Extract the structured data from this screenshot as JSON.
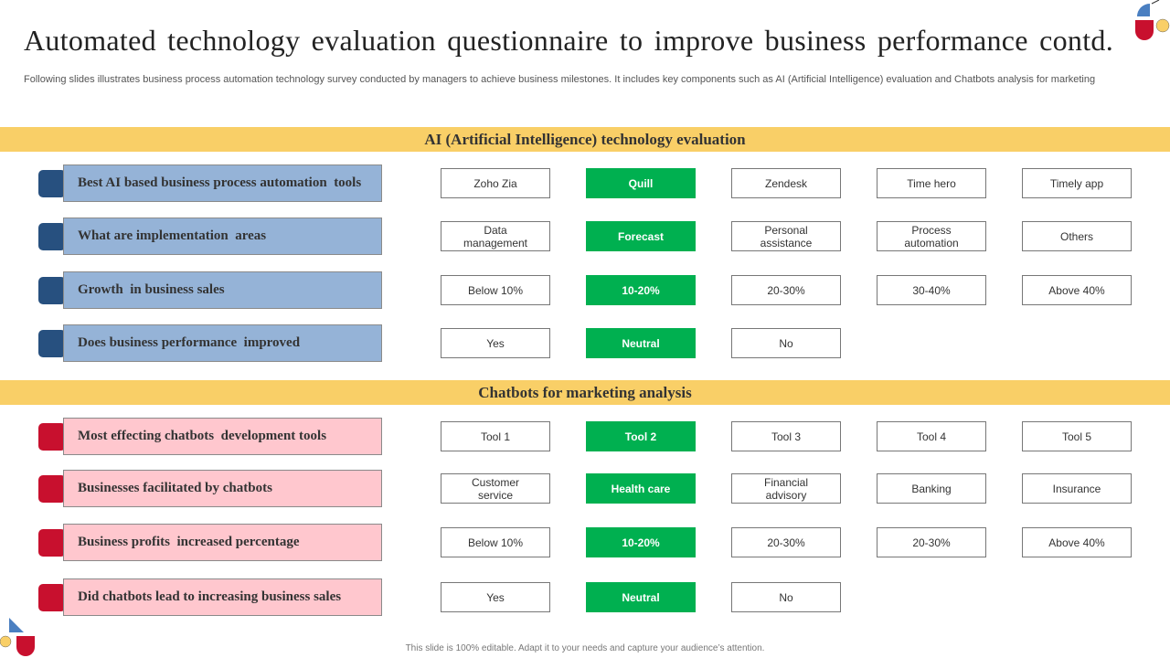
{
  "header": {
    "title": "Automated technology evaluation questionnaire to improve business performance contd.",
    "subtitle": "Following slides illustrates business process automation technology survey conducted by managers to achieve business milestones. It includes key components such as AI (Artificial Intelligence) evaluation and Chatbots analysis for marketing"
  },
  "sections": [
    {
      "heading": "AI (Artificial Intelligence) technology evaluation",
      "highlight_column": 1,
      "rows": [
        {
          "question": "Best AI based business process automation  tools",
          "options": [
            "Zoho Zia",
            "Quill",
            "Zendesk",
            "Time hero",
            "Timely app"
          ]
        },
        {
          "question": "What are implementation  areas",
          "options": [
            "Data management",
            "Forecast",
            "Personal assistance",
            "Process automation",
            "Others"
          ]
        },
        {
          "question": "Growth  in business sales",
          "options": [
            "Below 10%",
            "10-20%",
            "20-30%",
            "30-40%",
            "Above 40%"
          ]
        },
        {
          "question": "Does business performance  improved",
          "options": [
            "Yes",
            "Neutral",
            "No"
          ]
        }
      ]
    },
    {
      "heading": "Chatbots for marketing analysis",
      "highlight_column": 1,
      "rows": [
        {
          "question": "Most effecting chatbots  development tools",
          "options": [
            "Tool 1",
            "Tool 2",
            "Tool 3",
            "Tool 4",
            "Tool 5"
          ]
        },
        {
          "question": "Businesses facilitated by chatbots",
          "options": [
            "Customer service",
            "Health care",
            "Financial advisory",
            "Banking",
            "Insurance"
          ]
        },
        {
          "question": "Business profits  increased percentage",
          "options": [
            "Below 10%",
            "10-20%",
            "20-30%",
            "20-30%",
            "Above 40%"
          ]
        },
        {
          "question": "Did chatbots lead to increasing business sales",
          "options": [
            "Yes",
            "Neutral",
            "No"
          ]
        }
      ]
    }
  ],
  "footer": "This slide is 100% editable.  Adapt it to your needs and capture your audience’s attention."
}
